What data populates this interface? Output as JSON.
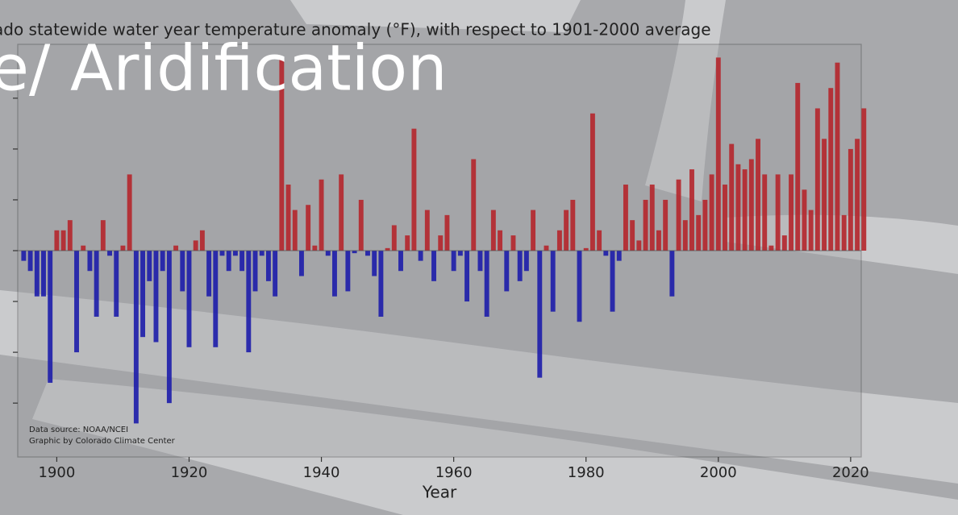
{
  "slide": {
    "title": "e/ Aridification"
  },
  "chart_data": {
    "type": "bar",
    "title": "ado statewide water year temperature anomaly (°F), with respect to 1901-2000 average",
    "x_label": "Year",
    "notes": [
      "Data source: NOAA/NCEI",
      "Graphic by Colorado Climate Center"
    ],
    "x": [
      1895,
      1896,
      1897,
      1898,
      1899,
      1900,
      1901,
      1902,
      1903,
      1904,
      1905,
      1906,
      1907,
      1908,
      1909,
      1910,
      1911,
      1912,
      1913,
      1914,
      1915,
      1916,
      1917,
      1918,
      1919,
      1920,
      1921,
      1922,
      1923,
      1924,
      1925,
      1926,
      1927,
      1928,
      1929,
      1930,
      1931,
      1932,
      1933,
      1934,
      1935,
      1936,
      1937,
      1938,
      1939,
      1940,
      1941,
      1942,
      1943,
      1944,
      1945,
      1946,
      1947,
      1948,
      1949,
      1950,
      1951,
      1952,
      1953,
      1954,
      1955,
      1956,
      1957,
      1958,
      1959,
      1960,
      1961,
      1962,
      1963,
      1964,
      1965,
      1966,
      1967,
      1968,
      1969,
      1970,
      1971,
      1972,
      1973,
      1974,
      1975,
      1976,
      1977,
      1978,
      1979,
      1980,
      1981,
      1982,
      1983,
      1984,
      1985,
      1986,
      1987,
      1988,
      1989,
      1990,
      1991,
      1992,
      1993,
      1994,
      1995,
      1996,
      1997,
      1998,
      1999,
      2000,
      2001,
      2002,
      2003,
      2004,
      2005,
      2006,
      2007,
      2008,
      2009,
      2010,
      2011,
      2012,
      2013,
      2014,
      2015,
      2016,
      2017,
      2018,
      2019,
      2020,
      2021,
      2022
    ],
    "values": [
      -0.2,
      -0.4,
      -0.9,
      -0.9,
      -2.6,
      0.4,
      0.4,
      0.6,
      -2.0,
      0.1,
      -0.4,
      -1.3,
      0.6,
      -0.1,
      -1.3,
      0.1,
      1.5,
      -3.4,
      -1.7,
      -0.6,
      -1.8,
      -0.4,
      -3.0,
      0.1,
      -0.8,
      -1.9,
      0.2,
      0.4,
      -0.9,
      -1.9,
      -0.1,
      -0.4,
      -0.1,
      -0.4,
      -2.0,
      -0.8,
      -0.1,
      -0.6,
      -0.9,
      3.8,
      1.3,
      0.8,
      -0.5,
      0.9,
      0.1,
      1.4,
      -0.1,
      -0.9,
      1.5,
      -0.8,
      -0.05,
      1.0,
      -0.1,
      -0.5,
      -1.3,
      0.05,
      0.5,
      -0.4,
      0.3,
      2.4,
      -0.2,
      0.8,
      -0.6,
      0.3,
      0.7,
      -0.4,
      -0.1,
      -1.0,
      1.8,
      -0.4,
      -1.3,
      0.8,
      0.4,
      -0.8,
      0.3,
      -0.6,
      -0.4,
      0.8,
      -2.5,
      0.1,
      -1.2,
      0.4,
      0.8,
      1.0,
      -1.4,
      0.05,
      2.7,
      0.4,
      -0.1,
      -1.2,
      -0.2,
      1.3,
      0.6,
      0.2,
      1.0,
      1.3,
      0.4,
      1.0,
      -0.9,
      1.4,
      0.6,
      1.6,
      0.7,
      1.0,
      1.5,
      3.8,
      1.3,
      2.1,
      1.7,
      1.6,
      1.8,
      2.2,
      1.5,
      0.1,
      1.5,
      0.3,
      1.5,
      3.3,
      1.2,
      0.8,
      2.8,
      2.2,
      3.2,
      3.7,
      0.7,
      2.0,
      2.2,
      2.8
    ],
    "colors": {
      "positive": "#b5262b",
      "negative": "#1d1daa"
    },
    "xlim": [
      1894.1,
      2021.6
    ],
    "xticks": [
      1900,
      1920,
      1940,
      1960,
      1980,
      2000,
      2020
    ],
    "ylim": [
      -4.06,
      4.06
    ],
    "yticks": [
      -3,
      -2,
      -1,
      0,
      1,
      2,
      3
    ]
  }
}
